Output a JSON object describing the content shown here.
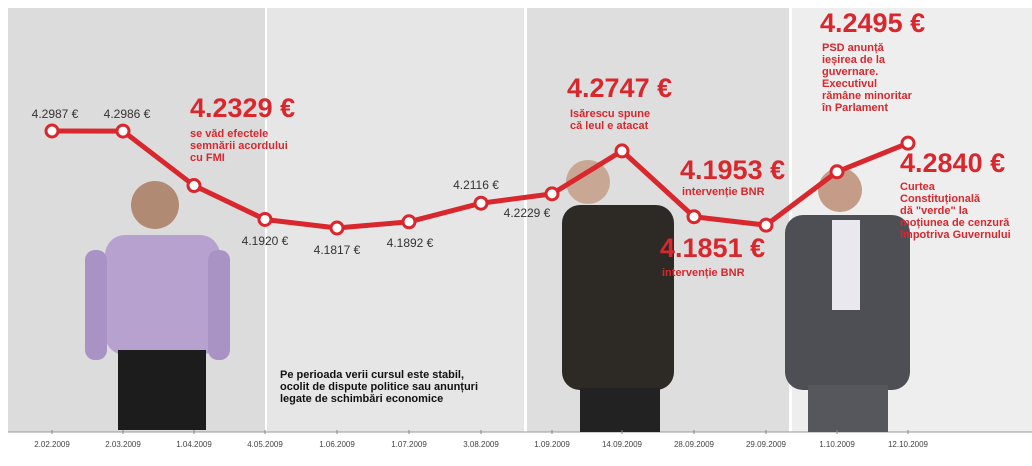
{
  "chart_data": {
    "type": "line",
    "categories": [
      "2.02.2009",
      "2.03.2009",
      "1.04.2009",
      "4.05.2009",
      "1.06.2009",
      "1.07.2009",
      "3.08.2009",
      "1.09.2009",
      "14.09.2009",
      "28.09.2009",
      "29.09.2009",
      "1.10.2009",
      "12.10.2009"
    ],
    "values": [
      4.2987,
      4.2986,
      4.2329,
      4.192,
      4.1817,
      4.1892,
      4.2116,
      4.2229,
      4.2747,
      4.1953,
      4.1851,
      4.2495,
      4.284
    ],
    "value_labels": [
      "4.2987 €",
      "4.2986 €",
      "4.2329 €",
      "4.1920 €",
      "4.1817 €",
      "4.1892 €",
      "4.2116 €",
      "4.2229 €",
      "4.2747 €",
      "4.1953 €",
      "4.1851 €",
      "4.2495 €",
      "4.2840 €"
    ],
    "color": "#d9272e",
    "annotations": [
      [
        "se văd efectele",
        "semnării acordului",
        "cu FMI"
      ],
      [
        "Isărescu spune",
        "că leul e atacat"
      ],
      [
        "intervenție BNR"
      ],
      [
        "intervenție BNR"
      ],
      [
        "PSD anunță",
        "ieșirea de la",
        "guvernare.",
        "Executivul",
        "rămâne minoritar",
        "în Parlament"
      ],
      [
        "Curtea",
        "Constituțională",
        "dă \"verde\" la",
        "moțiunea de cenzură",
        "împotriva Guvernului"
      ],
      [
        "Pe perioada verii cursul este stabil,",
        "ocolit de dispute politice sau anunțuri",
        "legate de  schimbări economice"
      ]
    ]
  }
}
